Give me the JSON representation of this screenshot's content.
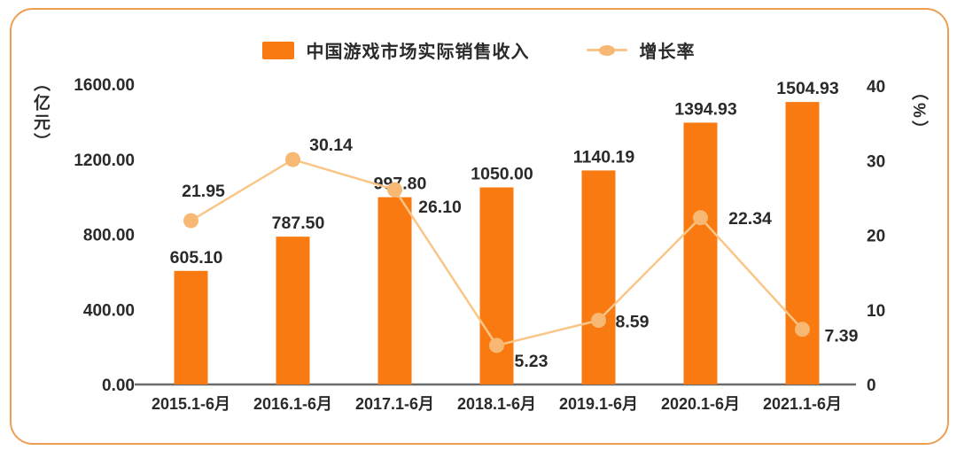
{
  "chart_data": {
    "type": "bar",
    "title": "",
    "categories": [
      "2015.1-6月",
      "2016.1-6月",
      "2017.1-6月",
      "2018.1-6月",
      "2019.1-6月",
      "2020.1-6月",
      "2021.1-6月"
    ],
    "series": [
      {
        "name": "中国游戏市场实际销售收入",
        "type": "bar",
        "axis": "left",
        "color": "#f87a10",
        "values": [
          605.1,
          787.5,
          997.8,
          1050.0,
          1140.19,
          1394.93,
          1504.93
        ],
        "value_labels": [
          "605.10",
          "787.50",
          "997.80",
          "1050.00",
          "1140.19",
          "1394.93",
          "1504.93"
        ]
      },
      {
        "name": "增长率",
        "type": "line",
        "axis": "right",
        "color": "#f9c687",
        "marker_color": "#f6b873",
        "values": [
          21.95,
          30.14,
          26.1,
          5.23,
          8.59,
          22.34,
          7.39
        ],
        "value_labels": [
          "21.95",
          "30.14",
          "26.10",
          "5.23",
          "8.59",
          "22.34",
          "7.39"
        ]
      }
    ],
    "left_axis": {
      "title": "（亿元）",
      "ticks": [
        "1600.00",
        "1200.00",
        "800.00",
        "400.00",
        "0.00"
      ],
      "tick_values": [
        1600,
        1200,
        800,
        400,
        0
      ],
      "min": 0,
      "max": 1600
    },
    "right_axis": {
      "title": "（%）",
      "ticks": [
        "40",
        "30",
        "20",
        "10",
        "0"
      ],
      "tick_values": [
        40,
        30,
        20,
        10,
        0
      ],
      "min": 0,
      "max": 40
    },
    "legend_position": "top",
    "grid": false,
    "colors": {
      "bar": "#f87a10",
      "line": "#f9c687",
      "marker": "#f6b873",
      "text": "#2a2a2a",
      "axis_line": "#6b6b6b",
      "card_border": "#ed9e53"
    }
  }
}
